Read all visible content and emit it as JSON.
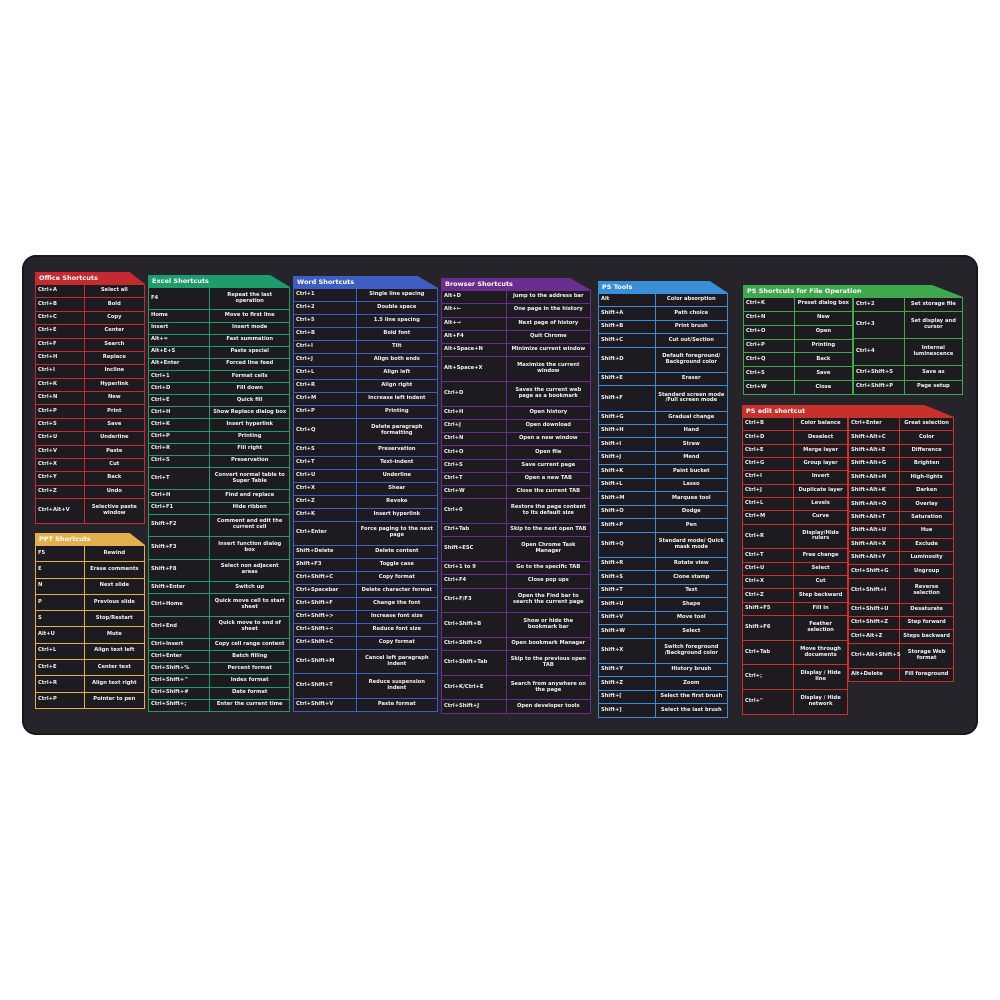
{
  "panels": [
    {
      "id": "office",
      "title": "Office Shortcuts",
      "color": "#c42a30",
      "columns": [
        [
          [
            "Ctrl+A",
            "Select all"
          ],
          [
            "Ctrl+B",
            "Bold"
          ],
          [
            "Ctrl+C",
            "Copy"
          ],
          [
            "Ctrl+E",
            "Center"
          ],
          [
            "Ctrl+F",
            "Search"
          ],
          [
            "Ctrl+H",
            "Replace"
          ],
          [
            "Ctrl+I",
            "Incline"
          ],
          [
            "Ctrl+K",
            "Hyperlink"
          ],
          [
            "Ctrl+N",
            "New"
          ],
          [
            "Ctrl+P",
            "Print"
          ],
          [
            "Ctrl+S",
            "Save"
          ],
          [
            "Ctrl+U",
            "Underline"
          ],
          [
            "Ctrl+V",
            "Paste"
          ],
          [
            "Ctrl+X",
            "Cut"
          ],
          [
            "Ctrl+Y",
            "Back"
          ],
          [
            "Ctrl+Z",
            "Undo"
          ],
          [
            "Ctrl+Alt+V",
            "Selective paste window"
          ]
        ]
      ]
    },
    {
      "id": "ppt",
      "title": "PPT Shortcuts",
      "color": "#e2b04c",
      "columns": [
        [
          [
            "F5",
            "Rewind"
          ],
          [
            "E",
            "Erase comments"
          ],
          [
            "N",
            "Next slide"
          ],
          [
            "P",
            "Previous slide"
          ],
          [
            "S",
            "Stop/Restart"
          ],
          [
            "Alt+U",
            "Mute"
          ],
          [
            "Ctrl+L",
            "Align text left"
          ],
          [
            "Ctrl+E",
            "Center text"
          ],
          [
            "Ctrl+R",
            "Align text right"
          ],
          [
            "Ctrl+P",
            "Pointer to pen"
          ]
        ]
      ]
    },
    {
      "id": "excel",
      "title": "Excel Shortcuts",
      "color": "#1e9c6c",
      "columns": [
        [
          [
            "F4",
            "Repeat the last operation"
          ],
          [
            "Home",
            "Move to first line"
          ],
          [
            "Insert",
            "Insert mode"
          ],
          [
            "Alt+=",
            "Fast summation"
          ],
          [
            "Alt+E+S",
            "Paste special"
          ],
          [
            "Alt+Enter",
            "Forced line feed"
          ],
          [
            "Ctrl+1",
            "Format cells"
          ],
          [
            "Ctrl+D",
            "Fill down"
          ],
          [
            "Ctrl+E",
            "Quick fill"
          ],
          [
            "Ctrl+H",
            "Show Replace dialog box"
          ],
          [
            "Ctrl+K",
            "Insert hyperlink"
          ],
          [
            "Ctrl+P",
            "Printing"
          ],
          [
            "Ctrl+R",
            "Fill right"
          ],
          [
            "Ctrl+S",
            "Preservation"
          ],
          [
            "Ctrl+T",
            "Convert normal table to Super Table"
          ],
          [
            "Ctrl+H",
            "Find and replace"
          ],
          [
            "Ctrl+F1",
            "Hide ribbon"
          ],
          [
            "Shift+F2",
            "Comment and edit the current cell"
          ],
          [
            "Shift+F3",
            "Insert function dialog box"
          ],
          [
            "Shift+F8",
            "Select non adjacent areas"
          ],
          [
            "Shift+Enter",
            "Switch up"
          ],
          [
            "Ctrl+Home",
            "Quick move cell to start sheet"
          ],
          [
            "Ctrl+End",
            "Quick move to end of sheet"
          ],
          [
            "Ctrl+Insert",
            "Copy cell range content"
          ],
          [
            "Ctrl+Enter",
            "Batch filling"
          ],
          [
            "Ctrl+Shift+%",
            "Percent format"
          ],
          [
            "Ctrl+Shift+^",
            "Index format"
          ],
          [
            "Ctrl+Shift+#",
            "Date format"
          ],
          [
            "Ctrl+Shift+;",
            "Enter the current time"
          ]
        ]
      ]
    },
    {
      "id": "word",
      "title": "Word Shortcuts",
      "color": "#3f5ec4",
      "columns": [
        [
          [
            "Ctrl+1",
            "Single line spacing"
          ],
          [
            "Ctrl+2",
            "Double space"
          ],
          [
            "Ctrl+5",
            "1.5 line spacing"
          ],
          [
            "Ctrl+B",
            "Bold font"
          ],
          [
            "Ctrl+I",
            "Tilt"
          ],
          [
            "Ctrl+J",
            "Align both ends"
          ],
          [
            "Ctrl+L",
            "Align left"
          ],
          [
            "Ctrl+R",
            "Align right"
          ],
          [
            "Ctrl+M",
            "Increase left indent"
          ],
          [
            "Ctrl+P",
            "Printing"
          ],
          [
            "Ctrl+Q",
            "Delete paragraph formatting"
          ],
          [
            "Ctrl+S",
            "Preservation"
          ],
          [
            "Ctrl+T",
            "Text-indent"
          ],
          [
            "Ctrl+U",
            "Underline"
          ],
          [
            "Ctrl+X",
            "Shear"
          ],
          [
            "Ctrl+Z",
            "Revoke"
          ],
          [
            "Ctrl+K",
            "Insert hyperlink"
          ],
          [
            "Ctrl+Enter",
            "Force paging to the next page"
          ],
          [
            "Shift+Delete",
            "Delete content"
          ],
          [
            "Shift+F3",
            "Toggle case"
          ],
          [
            "Ctrl+Shift+C",
            "Copy format"
          ],
          [
            "Ctrl+Spacebar",
            "Delete character format"
          ],
          [
            "Ctrl+Shift+F",
            "Change the font"
          ],
          [
            "Ctrl+Shift+>",
            "Increase font size"
          ],
          [
            "Ctrl+Shift+<",
            "Reduce font size"
          ],
          [
            "Ctrl+Shift+C",
            "Copy format"
          ],
          [
            "Ctrl+Shift+M",
            "Cancel left paragraph indent"
          ],
          [
            "Ctrl+Shift+T",
            "Reduce suspension indent"
          ],
          [
            "Ctrl+Shift+V",
            "Paste format"
          ]
        ]
      ]
    },
    {
      "id": "browser",
      "title": "Browser Shortcuts",
      "color": "#6a2d90",
      "columns": [
        [
          [
            "Alt+D",
            "Jump to the address bar"
          ],
          [
            "Alt+←",
            "One page in the history"
          ],
          [
            "Alt+→",
            "Next page of history"
          ],
          [
            "Alt+F4",
            "Quit Chrome"
          ],
          [
            "Alt+Space+N",
            "Minimize current window"
          ],
          [
            "Alt+Space+X",
            "Maximize the current window"
          ],
          [
            "Ctrl+D",
            "Saves the current web page as a bookmark"
          ],
          [
            "Ctrl+H",
            "Open history"
          ],
          [
            "Ctrl+J",
            "Open download"
          ],
          [
            "Ctrl+N",
            "Open a new window"
          ],
          [
            "Ctrl+O",
            "Open file"
          ],
          [
            "Ctrl+S",
            "Save current page"
          ],
          [
            "Ctrl+T",
            "Open a new TAB"
          ],
          [
            "Ctrl+W",
            "Close the current TAB"
          ],
          [
            "Ctrl+0",
            "Restore the page content to its default size"
          ],
          [
            "Ctrl+Tab",
            "Skip to the next open TAB"
          ],
          [
            "Shift+ESC",
            "Open Chrome Task Manager"
          ],
          [
            "Ctrl+1 to 9",
            "Go to the specific TAB"
          ],
          [
            "Ctrl+F4",
            "Close pop ups"
          ],
          [
            "Ctrl+F/F3",
            "Open the Find bar to search the current page"
          ],
          [
            "Ctrl+Shift+B",
            "Show or hide the bookmark bar"
          ],
          [
            "Ctrl+Shift+O",
            "Open bookmark Manager"
          ],
          [
            "Ctrl+Shift+Tab",
            "Skip to the previous open TAB"
          ],
          [
            "Ctrl+K/Ctrl+E",
            "Search from anywhere on the page"
          ],
          [
            "Ctrl+Shift+J",
            "Open developer tools"
          ]
        ]
      ]
    },
    {
      "id": "pstools",
      "title": "PS Tools",
      "color": "#3a8ed8",
      "columns": [
        [
          [
            "Alt",
            "Color absorption"
          ],
          [
            "Shift+A",
            "Path choice"
          ],
          [
            "Shift+B",
            "Print brush"
          ],
          [
            "Shift+C",
            "Cut out/Section"
          ],
          [
            "Shift+D",
            "Default foreground/ Background color"
          ],
          [
            "Shift+E",
            "Eraser"
          ],
          [
            "Shift+F",
            "Standard screen mode /Full screen mode"
          ],
          [
            "Shift+G",
            "Gradual change"
          ],
          [
            "Shift+H",
            "Hand"
          ],
          [
            "Shift+I",
            "Straw"
          ],
          [
            "Shift+J",
            "Mend"
          ],
          [
            "Shift+K",
            "Paint bucket"
          ],
          [
            "Shift+L",
            "Lasso"
          ],
          [
            "Shift+M",
            "Marquee tool"
          ],
          [
            "Shift+O",
            "Dodge"
          ],
          [
            "Shift+P",
            "Pen"
          ],
          [
            "Shift+Q",
            "Standard mode/ Quick mask mode"
          ],
          [
            "Shift+R",
            "Rotate view"
          ],
          [
            "Shift+S",
            "Clone stamp"
          ],
          [
            "Shift+T",
            "Text"
          ],
          [
            "Shift+U",
            "Shape"
          ],
          [
            "Shift+V",
            "Move tool"
          ],
          [
            "Shift+W",
            "Select"
          ],
          [
            "Shift+X",
            "Switch foreground /Background color"
          ],
          [
            "Shift+Y",
            "History brush"
          ],
          [
            "Shift+Z",
            "Zoom"
          ],
          [
            "Shift+[",
            "Select the first brush"
          ],
          [
            "Shift+]",
            "Select the last brush"
          ]
        ]
      ]
    },
    {
      "id": "psfile",
      "title": "PS Shortcuts for File Operation",
      "color": "#3ea84c",
      "columns": [
        [
          [
            "Ctrl+K",
            "Preset dialog box"
          ],
          [
            "Ctrl+N",
            "New"
          ],
          [
            "Ctrl+O",
            "Open"
          ],
          [
            "Ctrl+P",
            "Printing"
          ],
          [
            "Ctrl+Q",
            "Back"
          ],
          [
            "Ctrl+S",
            "Save"
          ],
          [
            "Ctrl+W",
            "Close"
          ]
        ],
        [
          [
            "Ctrl+2",
            "Set storage file"
          ],
          [
            "Ctrl+3",
            "Set display and cursor"
          ],
          [
            "Ctrl+4",
            "Internal luminescence"
          ],
          [
            "Ctrl+Shift+S",
            "Save as"
          ],
          [
            "Ctrl+Shift+P",
            "Page setup"
          ]
        ]
      ]
    },
    {
      "id": "psedit",
      "title": "PS edit shortcut",
      "color": "#c8302a",
      "columns": [
        [
          [
            "Ctrl+B",
            "Color balance"
          ],
          [
            "Ctrl+D",
            "Deselect"
          ],
          [
            "Ctrl+E",
            "Merge layer"
          ],
          [
            "Ctrl+G",
            "Group layer"
          ],
          [
            "Ctrl+I",
            "Invert"
          ],
          [
            "Ctrl+J",
            "Duplicate layer"
          ],
          [
            "Ctrl+L",
            "Levels"
          ],
          [
            "Ctrl+M",
            "Curve"
          ],
          [
            "Ctrl+R",
            "Display/Hide rulers"
          ],
          [
            "Ctrl+T",
            "Free change"
          ],
          [
            "Ctrl+U",
            "Select"
          ],
          [
            "Ctrl+X",
            "Cut"
          ],
          [
            "Ctrl+Z",
            "Step backward"
          ],
          [
            "Shift+F5",
            "Fill in"
          ],
          [
            "Shift+F6",
            "Feather selection"
          ],
          [
            "Ctrl+Tab",
            "Move through documents"
          ],
          [
            "Ctrl+;",
            "Display / Hide line"
          ],
          [
            "Ctrl+\"",
            "Display / Hide network"
          ]
        ],
        [
          [
            "Ctrl+Enter",
            "Great selection"
          ],
          [
            "Shift+Alt+C",
            "Color"
          ],
          [
            "Shift+Alt+E",
            "Difference"
          ],
          [
            "Shift+Alt+G",
            "Brighten"
          ],
          [
            "Shift+Alt+H",
            "High-lights"
          ],
          [
            "Shift+Alt+K",
            "Darken"
          ],
          [
            "Shift+Alt+O",
            "Overlay"
          ],
          [
            "Shift+Alt+T",
            "Saturation"
          ],
          [
            "Shift+Alt+U",
            "Hue"
          ],
          [
            "Shift+Alt+X",
            "Exclude"
          ],
          [
            "Shift+Alt+Y",
            "Luminosity"
          ],
          [
            "Ctrl+Shift+G",
            "Ungroup"
          ],
          [
            "Ctrl+Shift+I",
            "Reverse selection"
          ],
          [
            "Ctrl+Shift+U",
            "Desaturate"
          ],
          [
            "Ctrl+Shift+Z",
            "Step forward"
          ],
          [
            "Ctrl+Alt+Z",
            "Steps backward"
          ],
          [
            "Ctrl+Alt+Shift+S",
            "Storage Web format"
          ],
          [
            "Alt+Delete",
            "Fill foreground"
          ]
        ]
      ]
    }
  ]
}
